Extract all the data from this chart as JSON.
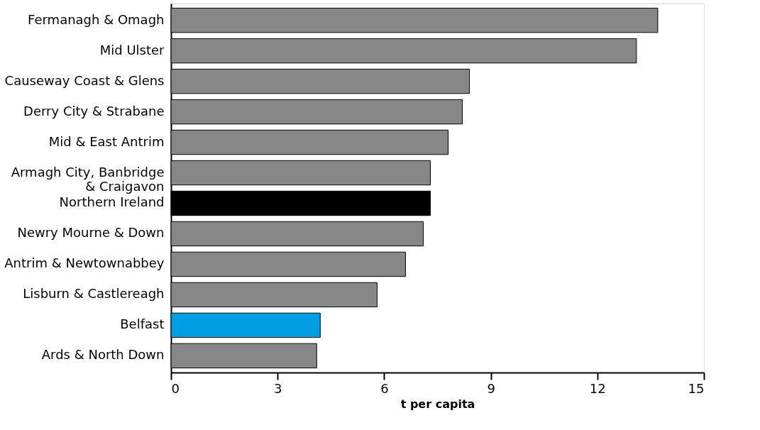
{
  "chart_data": {
    "type": "bar",
    "orientation": "horizontal",
    "xlabel": "t per capita",
    "categories": [
      "Fermanagh & Omagh",
      "Mid Ulster",
      "Causeway Coast & Glens",
      "Derry City & Strabane",
      "Mid & East Antrim",
      "Armagh City, Banbridge\n& Craigavon",
      "Northern Ireland",
      "Newry Mourne & Down",
      "Antrim & Newtownabbey",
      "Lisburn & Castlereagh",
      "Belfast",
      "Ards & North Down"
    ],
    "values": [
      13.7,
      13.1,
      8.4,
      8.2,
      7.8,
      7.3,
      7.3,
      7.1,
      6.6,
      5.8,
      4.2,
      4.1
    ],
    "colors": [
      "#878787",
      "#878787",
      "#878787",
      "#878787",
      "#878787",
      "#878787",
      "#000000",
      "#878787",
      "#878787",
      "#878787",
      "#009fe3",
      "#878787"
    ],
    "xlim": [
      0,
      15
    ],
    "xticks": [
      0,
      3,
      6,
      9,
      12,
      15
    ],
    "grid": false,
    "legend": false
  }
}
